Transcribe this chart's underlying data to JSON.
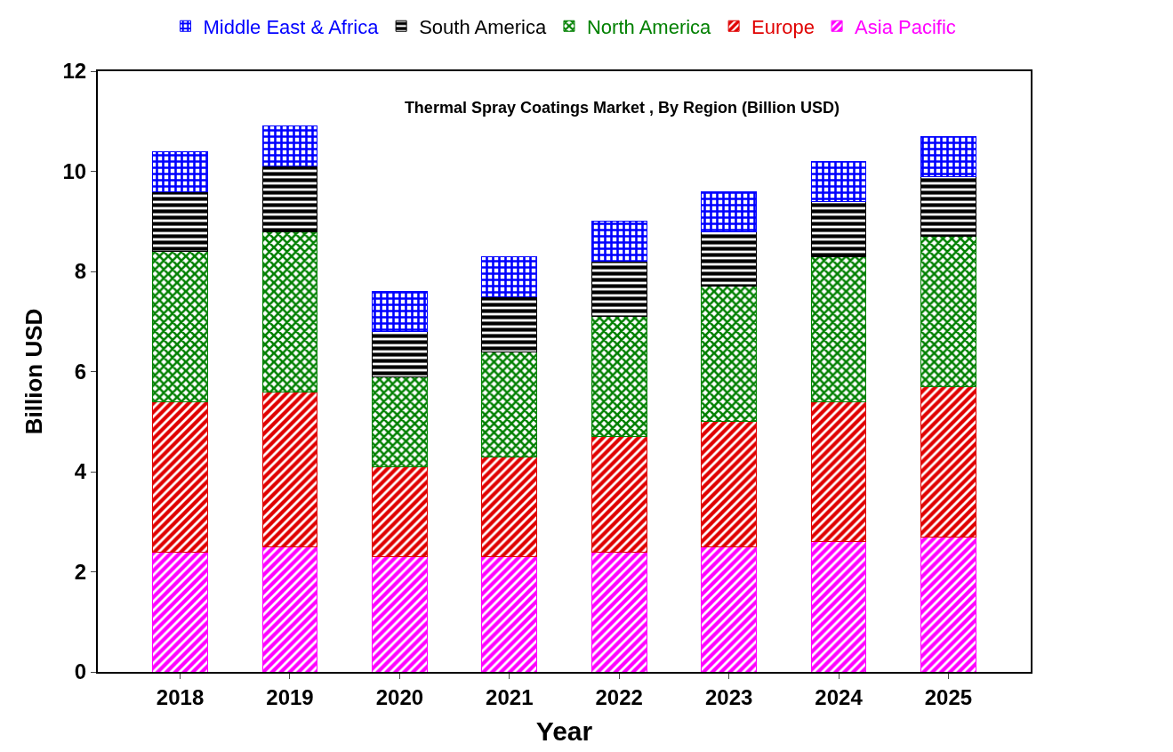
{
  "chart_data": {
    "type": "bar",
    "stacked": true,
    "title": "Thermal Spray Coatings Market , By Region (Billion USD)",
    "xlabel": "Year",
    "ylabel": "Billion USD",
    "categories": [
      "2018",
      "2019",
      "2020",
      "2021",
      "2022",
      "2023",
      "2024",
      "2025"
    ],
    "series": [
      {
        "name": "Asia Pacific",
        "color": "#ff00ff",
        "values": [
          2.4,
          2.5,
          2.3,
          2.3,
          2.4,
          2.5,
          2.6,
          2.7
        ]
      },
      {
        "name": "Europe",
        "color": "#e00000",
        "values": [
          3.0,
          3.1,
          1.8,
          2.0,
          2.3,
          2.5,
          2.8,
          3.0
        ]
      },
      {
        "name": "North America",
        "color": "#008000",
        "values": [
          3.0,
          3.2,
          1.8,
          2.1,
          2.4,
          2.7,
          2.9,
          3.0
        ]
      },
      {
        "name": "South America",
        "color": "#000000",
        "values": [
          1.2,
          1.3,
          0.9,
          1.1,
          1.1,
          1.1,
          1.1,
          1.2
        ]
      },
      {
        "name": "Middle East & Africa",
        "color": "#0000ff",
        "values": [
          0.8,
          0.8,
          0.8,
          0.8,
          0.8,
          0.8,
          0.8,
          0.8
        ]
      }
    ],
    "ylim": [
      0,
      12
    ],
    "yticks": [
      0,
      2,
      4,
      6,
      8,
      10,
      12
    ],
    "grid": false,
    "legend": "top"
  }
}
